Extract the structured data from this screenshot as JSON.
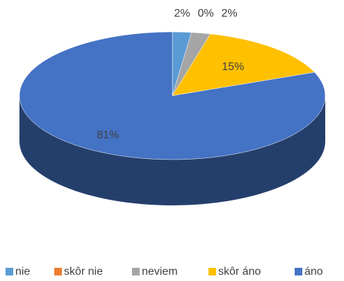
{
  "chart_data": {
    "type": "pie",
    "categories": [
      "nie",
      "skôr nie",
      "neviem",
      "skôr áno",
      "áno"
    ],
    "values": [
      2,
      0,
      2,
      15,
      81
    ],
    "value_labels": [
      "2%",
      "0%",
      "2%",
      "15%",
      "81%"
    ],
    "colors": [
      "#5b9bd5",
      "#ed7d31",
      "#a5a5a5",
      "#ffc000",
      "#4472c4"
    ],
    "legend": "bottom"
  }
}
